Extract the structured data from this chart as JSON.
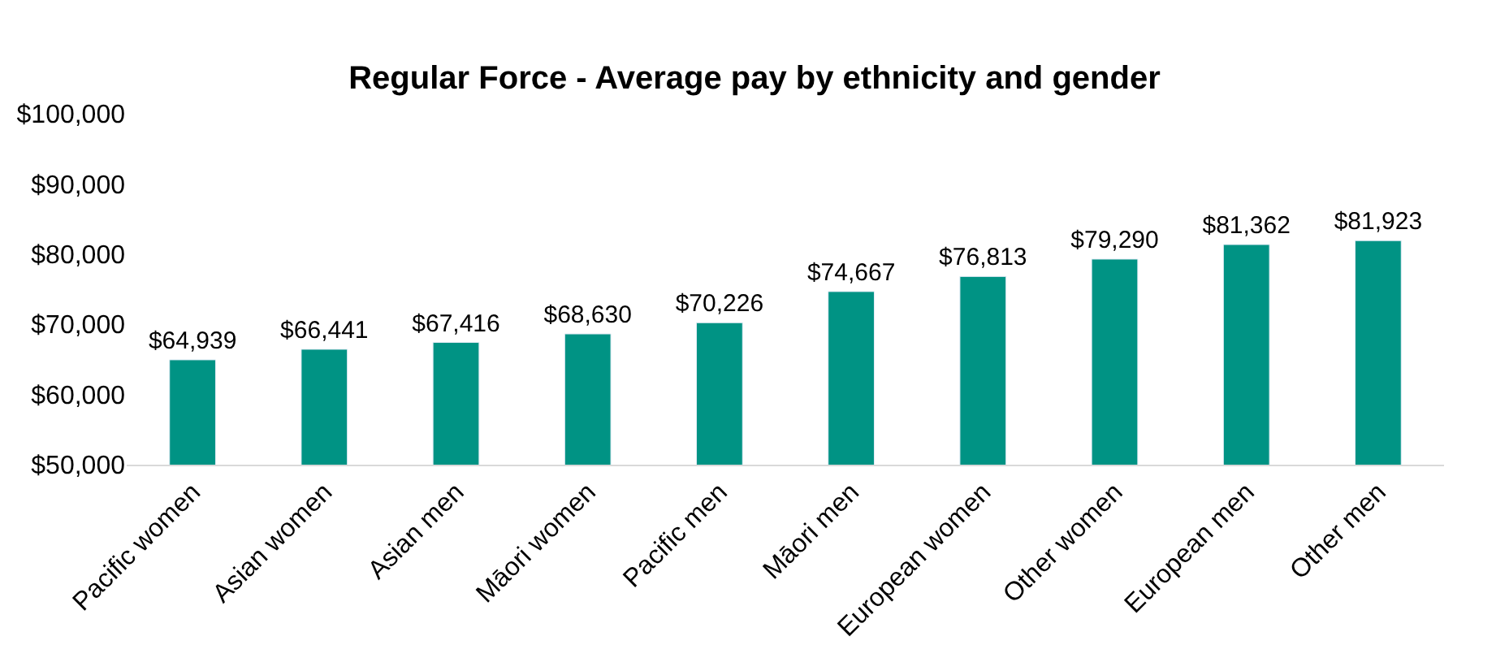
{
  "chart_data": {
    "type": "bar",
    "title": "Regular Force - Average pay by ethnicity and gender",
    "categories": [
      "Pacific women",
      "Asian women",
      "Asian men",
      "Māori women",
      "Pacific men",
      "Māori men",
      "European women",
      "Other women",
      "European men",
      "Other men"
    ],
    "values": [
      64939,
      66441,
      67416,
      68630,
      70226,
      74667,
      76813,
      79290,
      81362,
      81923
    ],
    "value_labels": [
      "$64,939",
      "$66,441",
      "$67,416",
      "$68,630",
      "$70,226",
      "$74,667",
      "$76,813",
      "$79,290",
      "$81,362",
      "$81,923"
    ],
    "color": "#009384",
    "ylim": [
      50000,
      100000
    ],
    "yticks": [
      {
        "value": 50000,
        "label": "$50,000"
      },
      {
        "value": 60000,
        "label": "$60,000"
      },
      {
        "value": 70000,
        "label": "$70,000"
      },
      {
        "value": 80000,
        "label": "$80,000"
      },
      {
        "value": 90000,
        "label": "$90,000"
      },
      {
        "value": 100000,
        "label": "$100,000"
      }
    ]
  }
}
